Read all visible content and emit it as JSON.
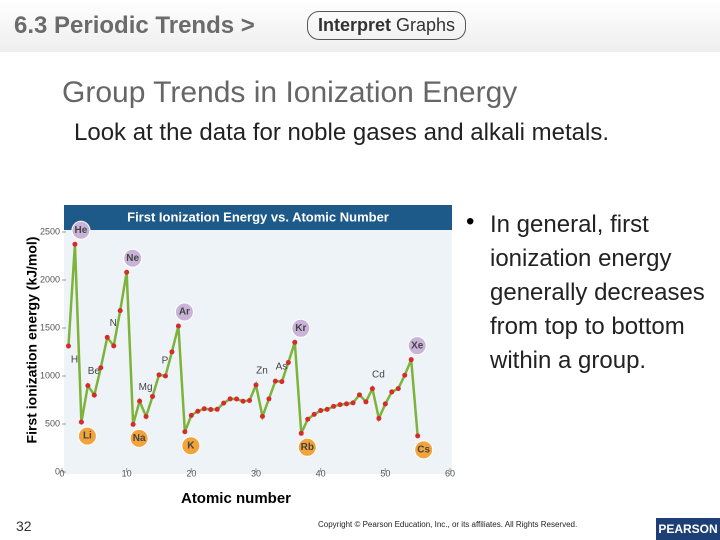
{
  "header": {
    "section": "6.3 Periodic Trends >",
    "tag_bold": "Interpret",
    "tag": "Graphs"
  },
  "slide": {
    "title": "Group Trends in Ionization Energy",
    "intro": "Look at the data for noble gases and alkali metals.",
    "bullet": "In general, first ionization energy generally decreases from top to bottom within a group.",
    "page_number": "32",
    "copyright": "Copyright © Pearson Education, Inc., or its affiliates. All Rights Reserved.",
    "logo": "PEARSON"
  },
  "chart_data": {
    "type": "line",
    "title": "First Ionization Energy vs. Atomic Number",
    "x_label": "Atomic number",
    "y_label": "First ionization energy (kJ/mol)",
    "x": [
      1,
      2,
      3,
      4,
      5,
      6,
      7,
      8,
      9,
      10,
      11,
      12,
      13,
      14,
      15,
      16,
      17,
      18,
      19,
      20,
      21,
      22,
      23,
      24,
      25,
      26,
      27,
      28,
      29,
      30,
      31,
      32,
      33,
      34,
      35,
      36,
      37,
      38,
      39,
      40,
      41,
      42,
      43,
      44,
      45,
      46,
      47,
      48,
      49,
      50,
      51,
      52,
      53,
      54,
      55
    ],
    "values": [
      1312,
      2372,
      520,
      900,
      801,
      1086,
      1402,
      1314,
      1681,
      2081,
      496,
      738,
      578,
      787,
      1012,
      1000,
      1251,
      1521,
      419,
      590,
      633,
      659,
      651,
      653,
      717,
      762,
      760,
      737,
      745,
      906,
      579,
      762,
      947,
      941,
      1140,
      1351,
      403,
      550,
      600,
      640,
      652,
      684,
      702,
      710,
      720,
      804,
      731,
      868,
      558,
      709,
      834,
      869,
      1008,
      1170,
      376
    ],
    "color": "#7db33a",
    "marker_color": "#d62b2b",
    "xlim": [
      0,
      60
    ],
    "xticks": [
      0,
      10,
      20,
      30,
      40,
      50,
      60
    ],
    "ylim": [
      0,
      2500
    ],
    "yticks": [
      0,
      500,
      1000,
      1500,
      2000,
      2500
    ],
    "annotations": [
      {
        "text": "H",
        "x": 1
      },
      {
        "text": "He",
        "x": 2,
        "color": "#c9b3d9"
      },
      {
        "text": "Li",
        "x": 3,
        "color": "#f2a33a"
      },
      {
        "text": "Be",
        "x": 4
      },
      {
        "text": "N",
        "x": 7
      },
      {
        "text": "Ne",
        "x": 10,
        "color": "#c9b3d9"
      },
      {
        "text": "Na",
        "x": 11,
        "color": "#f2a33a"
      },
      {
        "text": "Mg",
        "x": 12
      },
      {
        "text": "P",
        "x": 15
      },
      {
        "text": "Ar",
        "x": 18,
        "color": "#c9b3d9"
      },
      {
        "text": "K",
        "x": 19,
        "color": "#f2a33a"
      },
      {
        "text": "Zn",
        "x": 30
      },
      {
        "text": "As",
        "x": 33
      },
      {
        "text": "Kr",
        "x": 36,
        "color": "#c9b3d9"
      },
      {
        "text": "Rb",
        "x": 37,
        "color": "#f2a33a"
      },
      {
        "text": "Cd",
        "x": 48
      },
      {
        "text": "Xe",
        "x": 54,
        "color": "#c9b3d9"
      },
      {
        "text": "Cs",
        "x": 55,
        "color": "#f2a33a"
      }
    ]
  }
}
